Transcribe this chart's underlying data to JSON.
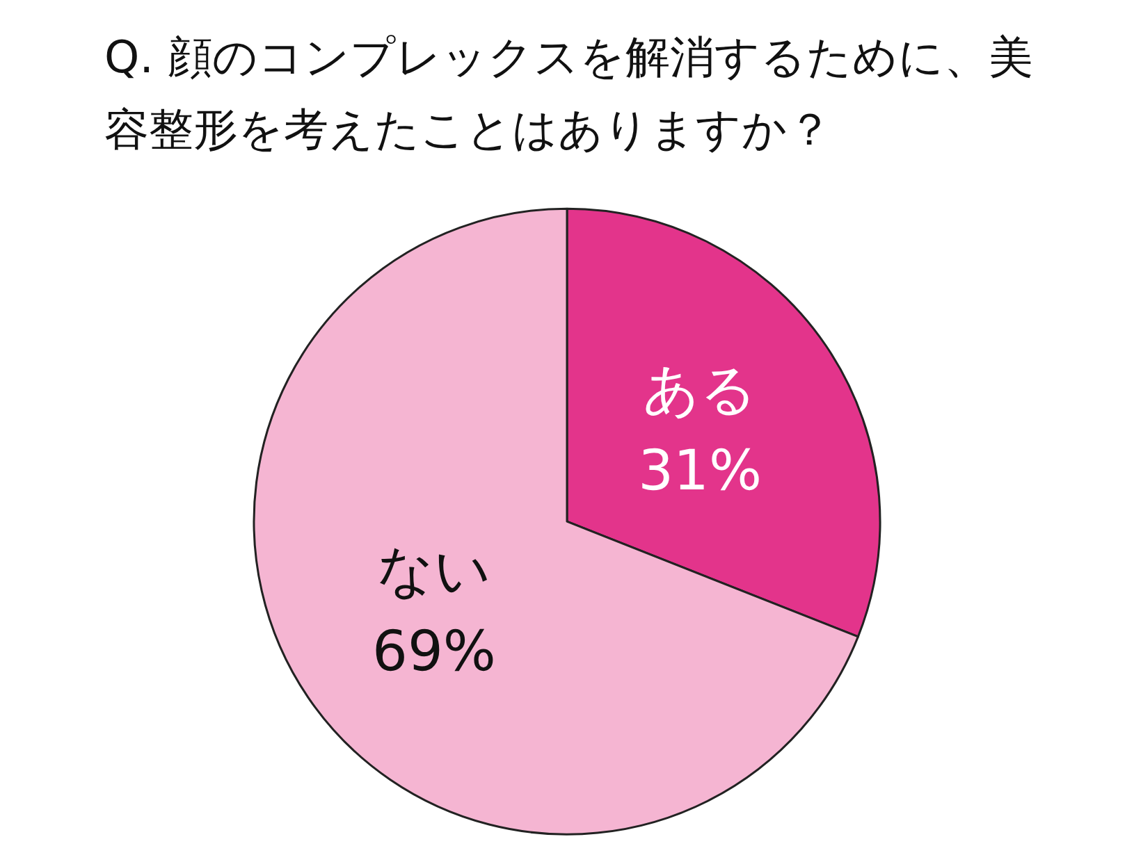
{
  "chart_data": {
    "type": "pie",
    "title": "Q. 顔のコンプレックスを解消するために、美容整形を考えたことはありますか？",
    "categories": [
      "ある",
      "ない"
    ],
    "values": [
      31,
      69
    ],
    "value_labels": [
      "31%",
      "69%"
    ],
    "colors": [
      "#e3348b",
      "#f5b5d2"
    ],
    "legend": false
  }
}
